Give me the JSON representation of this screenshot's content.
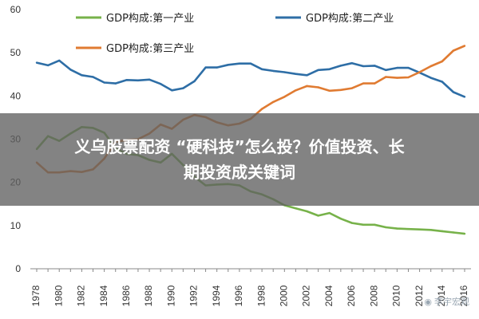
{
  "chart_data": {
    "type": "line",
    "title": "",
    "xlabel": "",
    "ylabel": "",
    "x": [
      1978,
      1979,
      1980,
      1981,
      1982,
      1983,
      1984,
      1985,
      1986,
      1987,
      1988,
      1989,
      1990,
      1991,
      1992,
      1993,
      1994,
      1995,
      1996,
      1997,
      1998,
      1999,
      2000,
      2001,
      2002,
      2003,
      2004,
      2005,
      2006,
      2007,
      2008,
      2009,
      2010,
      2011,
      2012,
      2013,
      2014,
      2015,
      2016
    ],
    "xticks": [
      1978,
      1980,
      1982,
      1984,
      1986,
      1988,
      1990,
      1992,
      1994,
      1996,
      1998,
      2000,
      2002,
      2004,
      2006,
      2008,
      2010,
      2012,
      2014,
      2016
    ],
    "ylim": [
      0,
      60
    ],
    "yticks": [
      0,
      10,
      20,
      30,
      40,
      50,
      60
    ],
    "grid": false,
    "legend_position": "top",
    "series": [
      {
        "name": "GDP构成:第一产业",
        "color": "#77b24a",
        "values": [
          27.7,
          30.7,
          29.6,
          31.3,
          32.8,
          32.6,
          31.5,
          27.9,
          26.6,
          26.3,
          25.2,
          24.6,
          26.6,
          24.0,
          21.3,
          19.3,
          19.5,
          19.6,
          19.3,
          17.9,
          17.2,
          16.1,
          14.7,
          14.0,
          13.3,
          12.3,
          12.9,
          11.6,
          10.6,
          10.2,
          10.2,
          9.6,
          9.3,
          9.2,
          9.1,
          9.0,
          8.7,
          8.4,
          8.1
        ]
      },
      {
        "name": "GDP构成:第二产业",
        "color": "#2e6ea6",
        "values": [
          47.7,
          47.1,
          48.2,
          46.1,
          44.8,
          44.4,
          43.1,
          42.9,
          43.7,
          43.6,
          43.8,
          42.8,
          41.3,
          41.8,
          43.4,
          46.6,
          46.6,
          47.2,
          47.5,
          47.5,
          46.2,
          45.8,
          45.5,
          45.1,
          44.8,
          46.0,
          46.2,
          47.0,
          47.6,
          46.9,
          47.0,
          46.0,
          46.5,
          46.5,
          45.4,
          44.2,
          43.3,
          40.9,
          39.8
        ]
      },
      {
        "name": "GDP构成:第三产业",
        "color": "#e07b32",
        "values": [
          24.6,
          22.3,
          22.3,
          22.6,
          22.4,
          23.0,
          25.5,
          29.4,
          29.8,
          30.0,
          31.3,
          33.4,
          32.4,
          34.5,
          35.6,
          35.1,
          33.9,
          33.2,
          33.6,
          34.7,
          37.0,
          38.6,
          39.8,
          41.3,
          42.3,
          42.0,
          41.2,
          41.4,
          41.8,
          42.9,
          42.9,
          44.4,
          44.2,
          44.3,
          45.5,
          46.9,
          48.0,
          50.5,
          51.6
        ]
      }
    ]
  },
  "banner": {
    "line1": "义乌股票配资 “硬科技”怎么投？价值投资、长",
    "line2": "期投资成关键词"
  },
  "watermark": {
    "text": "李宇宏观"
  }
}
